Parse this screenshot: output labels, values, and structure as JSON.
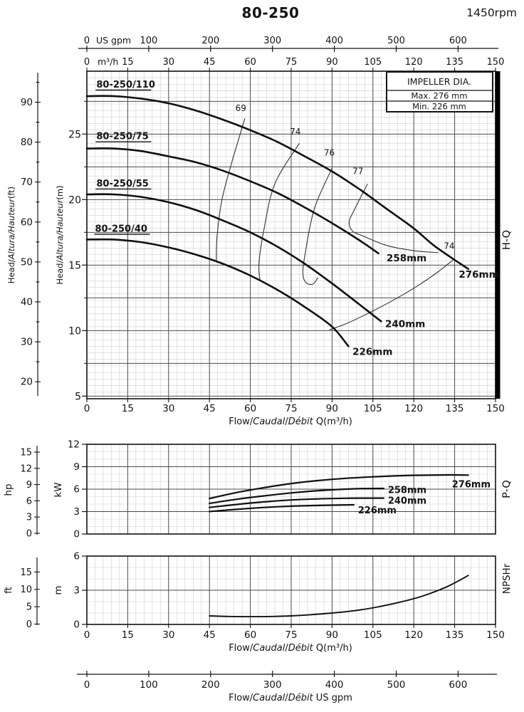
{
  "header": {
    "title": "80-250",
    "rpm": "1450rpm"
  },
  "section_labels": {
    "hq": "H-Q",
    "pq": "P-Q",
    "npshr": "NPSHr"
  },
  "impeller_box": {
    "title": "IMPELLER DIA.",
    "rows": [
      {
        "label": "Max.",
        "value": "276 mm"
      },
      {
        "label": "Min.",
        "value": "226 mm"
      }
    ]
  },
  "axis_text": {
    "gpm_unit": "US gpm",
    "m3h_unit": "m³/h",
    "head_ft_title": [
      {
        "t": "Head/"
      },
      {
        "t": "Altura/Hauteur",
        "i": 1
      },
      {
        "t": "(ft)"
      }
    ],
    "head_m_title": [
      {
        "t": "Head/"
      },
      {
        "t": "Altura/Hauteur",
        "i": 1
      },
      {
        "t": "(m)"
      }
    ],
    "flow_title_m3h": [
      {
        "t": "Flow/"
      },
      {
        "t": "Caudal",
        "i": 1
      },
      {
        "t": "/"
      },
      {
        "t": "Débit",
        "i": 1
      },
      {
        "t": " Q(m³/h)"
      }
    ],
    "flow_title_gpm": [
      {
        "t": "Flow/"
      },
      {
        "t": "Caudal",
        "i": 1
      },
      {
        "t": "/"
      },
      {
        "t": "Débit",
        "i": 1
      },
      {
        "t": "  US gpm"
      }
    ],
    "power_hp_unit": "hp",
    "power_kw_unit": "kW",
    "npsh_ft_unit": "ft",
    "npsh_m_unit": "m"
  },
  "chart_data": [
    {
      "type": "line",
      "name": "H-Q",
      "xlabel_unit": "m³/h",
      "xlim": [
        0,
        150
      ],
      "x_major_ticks": [
        0,
        15,
        30,
        45,
        60,
        75,
        90,
        105,
        120,
        135,
        150
      ],
      "gpm_ticks": [
        0,
        100,
        200,
        300,
        400,
        500,
        600
      ],
      "ylim_m": [
        4.8,
        29.8
      ],
      "y_ticks_m": [
        5,
        10,
        15,
        20,
        25
      ],
      "y_ticks_ft": [
        20,
        30,
        40,
        50,
        60,
        70,
        80,
        90
      ],
      "series": [
        {
          "name": "80-250/110",
          "impeller": "276mm",
          "points": [
            [
              0,
              27.9
            ],
            [
              10,
              27.9
            ],
            [
              20,
              27.7
            ],
            [
              30,
              27.35
            ],
            [
              40,
              26.8
            ],
            [
              50,
              26.1
            ],
            [
              60,
              25.3
            ],
            [
              70,
              24.4
            ],
            [
              80,
              23.3
            ],
            [
              90,
              22.15
            ],
            [
              100,
              20.8
            ],
            [
              110,
              19.3
            ],
            [
              120,
              17.8
            ],
            [
              128,
              16.4
            ],
            [
              140,
              14.7
            ]
          ],
          "label_pos": [
            3.5,
            28.55
          ],
          "dia_label_pos": [
            136.5,
            14.05
          ]
        },
        {
          "name": "80-250/75",
          "impeller": "258mm",
          "points": [
            [
              0,
              23.9
            ],
            [
              10,
              23.9
            ],
            [
              20,
              23.7
            ],
            [
              30,
              23.3
            ],
            [
              40,
              22.85
            ],
            [
              50,
              22.2
            ],
            [
              60,
              21.4
            ],
            [
              70,
              20.5
            ],
            [
              80,
              19.4
            ],
            [
              90,
              18.2
            ],
            [
              100,
              16.9
            ],
            [
              107,
              15.9
            ]
          ],
          "label_pos": [
            3.5,
            24.6
          ],
          "dia_label_pos": [
            110,
            15.3
          ]
        },
        {
          "name": "80-250/55",
          "impeller": "240mm",
          "points": [
            [
              0,
              20.4
            ],
            [
              10,
              20.4
            ],
            [
              20,
              20.2
            ],
            [
              30,
              19.8
            ],
            [
              40,
              19.2
            ],
            [
              50,
              18.4
            ],
            [
              60,
              17.5
            ],
            [
              70,
              16.4
            ],
            [
              80,
              15.1
            ],
            [
              90,
              13.6
            ],
            [
              100,
              12.0
            ],
            [
              108,
              10.7
            ]
          ],
          "label_pos": [
            3.5,
            21.0
          ],
          "dia_label_pos": [
            109.5,
            10.25
          ]
        },
        {
          "name": "80-250/40",
          "impeller": "226mm",
          "points": [
            [
              0,
              16.95
            ],
            [
              10,
              16.95
            ],
            [
              20,
              16.75
            ],
            [
              30,
              16.35
            ],
            [
              40,
              15.8
            ],
            [
              50,
              15.1
            ],
            [
              60,
              14.2
            ],
            [
              70,
              13.1
            ],
            [
              80,
              11.8
            ],
            [
              90,
              10.3
            ],
            [
              96,
              8.8
            ]
          ],
          "label_pos": [
            3.0,
            17.55
          ],
          "dia_label_pos": [
            97.5,
            8.15
          ]
        }
      ],
      "efficiency_curves": [
        {
          "label": "69",
          "label_pos": [
            56.5,
            26.75
          ],
          "points": [
            [
              58,
              26.2
            ],
            [
              53,
              22.7
            ],
            [
              49.5,
              19.9
            ],
            [
              47.8,
              17.2
            ],
            [
              47.5,
              15.35
            ]
          ]
        },
        {
          "label": "74",
          "label_pos": [
            76.5,
            24.95
          ],
          "points": [
            [
              78,
              24.3
            ],
            [
              69,
              21.2
            ],
            [
              65,
              17.7
            ],
            [
              63.2,
              15.2
            ],
            [
              63.5,
              13.85
            ]
          ]
        },
        {
          "label": "76",
          "label_pos": [
            89,
            23.35
          ],
          "points": [
            [
              90,
              22.4
            ],
            [
              83.5,
              19.3
            ],
            [
              80,
              15.7
            ],
            [
              79.3,
              14.3
            ],
            [
              80.5,
              13.65
            ],
            [
              83,
              13.55
            ],
            [
              84.8,
              14.05
            ]
          ]
        },
        {
          "label": "77",
          "label_pos": [
            99.5,
            21.95
          ],
          "points": [
            [
              103,
              21.2
            ],
            [
              98,
              19.15
            ],
            [
              96.3,
              18.3
            ],
            [
              97.5,
              17.6
            ],
            [
              101,
              17.25
            ]
          ]
        },
        {
          "label": "",
          "label_pos": null,
          "points": [
            [
              101,
              17.25
            ],
            [
              110,
              16.5
            ],
            [
              120,
              16.1
            ],
            [
              129,
              15.95
            ]
          ]
        },
        {
          "label": "74",
          "label_pos": [
            133,
            16.25
          ],
          "points": [
            [
              89,
              10.05
            ],
            [
              96,
              10.6
            ],
            [
              105,
              11.5
            ],
            [
              114,
              12.5
            ],
            [
              122,
              13.5
            ],
            [
              129,
              14.5
            ],
            [
              135,
              15.5
            ]
          ]
        }
      ]
    },
    {
      "type": "line",
      "name": "P-Q",
      "xlim": [
        0,
        150
      ],
      "ylim_kw": [
        0,
        12
      ],
      "y_ticks_kw": [
        0,
        3,
        6,
        9,
        12
      ],
      "y_ticks_hp": [
        0,
        3,
        6,
        9,
        12,
        15
      ],
      "series": [
        {
          "name": "276mm",
          "points": [
            [
              45,
              4.75
            ],
            [
              55,
              5.55
            ],
            [
              65,
              6.2
            ],
            [
              75,
              6.75
            ],
            [
              85,
              7.15
            ],
            [
              95,
              7.45
            ],
            [
              105,
              7.65
            ],
            [
              115,
              7.8
            ],
            [
              125,
              7.87
            ],
            [
              133,
              7.9
            ],
            [
              140,
              7.88
            ]
          ],
          "label_pos": [
            134,
            6.6
          ]
        },
        {
          "name": "258mm",
          "points": [
            [
              45,
              4.1
            ],
            [
              55,
              4.65
            ],
            [
              65,
              5.1
            ],
            [
              75,
              5.5
            ],
            [
              85,
              5.8
            ],
            [
              95,
              6.0
            ],
            [
              102,
              6.08
            ],
            [
              109,
              6.1
            ]
          ],
          "label_pos": [
            110.5,
            5.85
          ]
        },
        {
          "name": "240mm",
          "points": [
            [
              45,
              3.55
            ],
            [
              55,
              3.95
            ],
            [
              65,
              4.3
            ],
            [
              75,
              4.55
            ],
            [
              85,
              4.7
            ],
            [
              95,
              4.78
            ],
            [
              102,
              4.8
            ],
            [
              109,
              4.8
            ]
          ],
          "label_pos": [
            110.5,
            4.45
          ]
        },
        {
          "name": "226mm",
          "points": [
            [
              45,
              3.0
            ],
            [
              55,
              3.3
            ],
            [
              65,
              3.55
            ],
            [
              75,
              3.72
            ],
            [
              85,
              3.82
            ],
            [
              92,
              3.87
            ],
            [
              98,
              3.9
            ]
          ],
          "label_pos": [
            99.5,
            3.15
          ]
        }
      ]
    },
    {
      "type": "line",
      "name": "NPSHr",
      "xlim": [
        0,
        150
      ],
      "x_major_ticks": [
        0,
        15,
        30,
        45,
        60,
        75,
        90,
        105,
        120,
        135,
        150
      ],
      "gpm_ticks": [
        0,
        100,
        200,
        300,
        400,
        500,
        600
      ],
      "ylim_m": [
        0,
        6
      ],
      "y_ticks_m": [
        0,
        3,
        6
      ],
      "y_ticks_ft": [
        0,
        5,
        10,
        15
      ],
      "series": [
        {
          "name": "NPSHr",
          "points": [
            [
              45,
              0.75
            ],
            [
              52,
              0.7
            ],
            [
              60,
              0.68
            ],
            [
              68,
              0.7
            ],
            [
              75,
              0.75
            ],
            [
              82,
              0.85
            ],
            [
              90,
              1.0
            ],
            [
              98,
              1.2
            ],
            [
              106,
              1.5
            ],
            [
              114,
              1.9
            ],
            [
              122,
              2.4
            ],
            [
              128,
              2.9
            ],
            [
              133,
              3.4
            ],
            [
              137,
              3.9
            ],
            [
              140,
              4.3
            ]
          ]
        }
      ]
    }
  ]
}
